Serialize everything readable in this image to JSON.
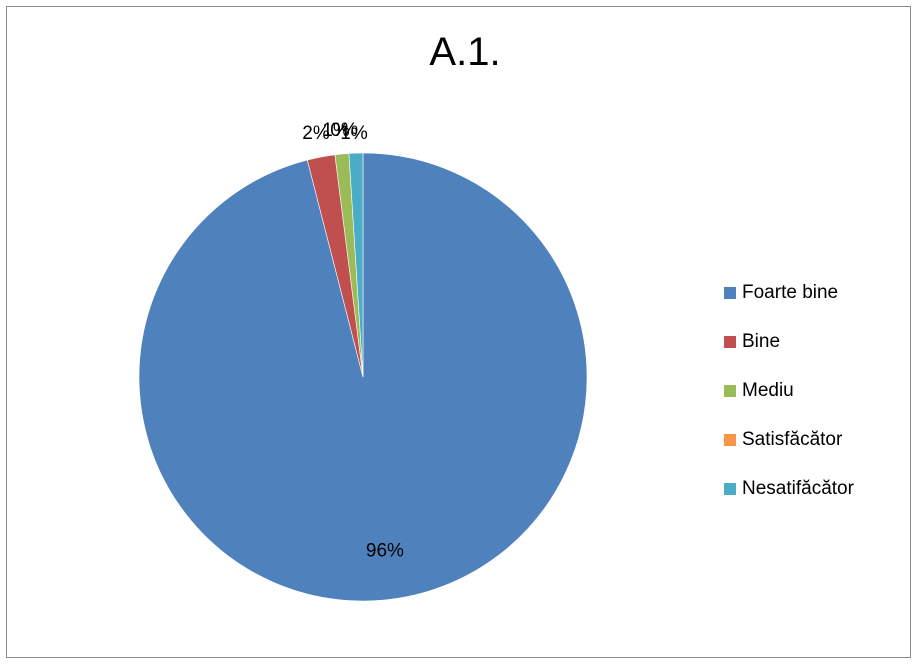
{
  "chart_data": {
    "type": "pie",
    "title": "A.1.",
    "categories": [
      "Foarte bine",
      "Bine",
      "Mediu",
      "Satisfăcător",
      "Nesatifăcător"
    ],
    "values": [
      96,
      2,
      1,
      0,
      1
    ],
    "data_labels": [
      "96%",
      "2%",
      "1%",
      "0%",
      "1%"
    ],
    "colors": [
      "#4f81bd",
      "#c0504d",
      "#9bbb59",
      "#f79646",
      "#4bacc6"
    ],
    "legend_position": "right"
  }
}
